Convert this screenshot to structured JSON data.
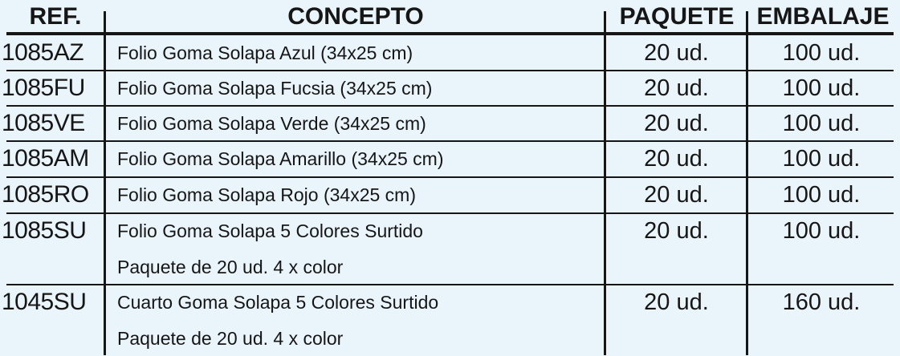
{
  "headers": {
    "ref": "REF.",
    "concepto": "CONCEPTO",
    "paquete": "PAQUETE",
    "embalaje": "EMBALAJE"
  },
  "rows": [
    {
      "ref": "1085AZ",
      "concepto": [
        "Folio Goma Solapa Azul (34x25 cm)"
      ],
      "paquete": "20 ud.",
      "embalaje": "100 ud."
    },
    {
      "ref": "1085FU",
      "concepto": [
        "Folio Goma Solapa Fucsia (34x25 cm)"
      ],
      "paquete": "20 ud.",
      "embalaje": "100 ud."
    },
    {
      "ref": "1085VE",
      "concepto": [
        "Folio Goma Solapa Verde (34x25 cm)"
      ],
      "paquete": "20 ud.",
      "embalaje": "100 ud."
    },
    {
      "ref": "1085AM",
      "concepto": [
        "Folio Goma Solapa Amarillo (34x25 cm)"
      ],
      "paquete": "20 ud.",
      "embalaje": "100 ud."
    },
    {
      "ref": "1085RO",
      "concepto": [
        "Folio Goma Solapa Rojo (34x25 cm)"
      ],
      "paquete": "20 ud.",
      "embalaje": "100 ud."
    },
    {
      "ref": "1085SU",
      "concepto": [
        "Folio Goma Solapa 5 Colores Surtido",
        "Paquete de 20 ud. 4 x color"
      ],
      "paquete": "20 ud.",
      "embalaje": "100 ud."
    },
    {
      "ref": "1045SU",
      "concepto": [
        "Cuarto Goma Solapa 5 Colores Surtido",
        "Paquete de 20 ud. 4 x color"
      ],
      "paquete": "20 ud.",
      "embalaje": "160 ud."
    }
  ],
  "colors": {
    "background": "#e9f4fb",
    "ink": "#161616"
  }
}
